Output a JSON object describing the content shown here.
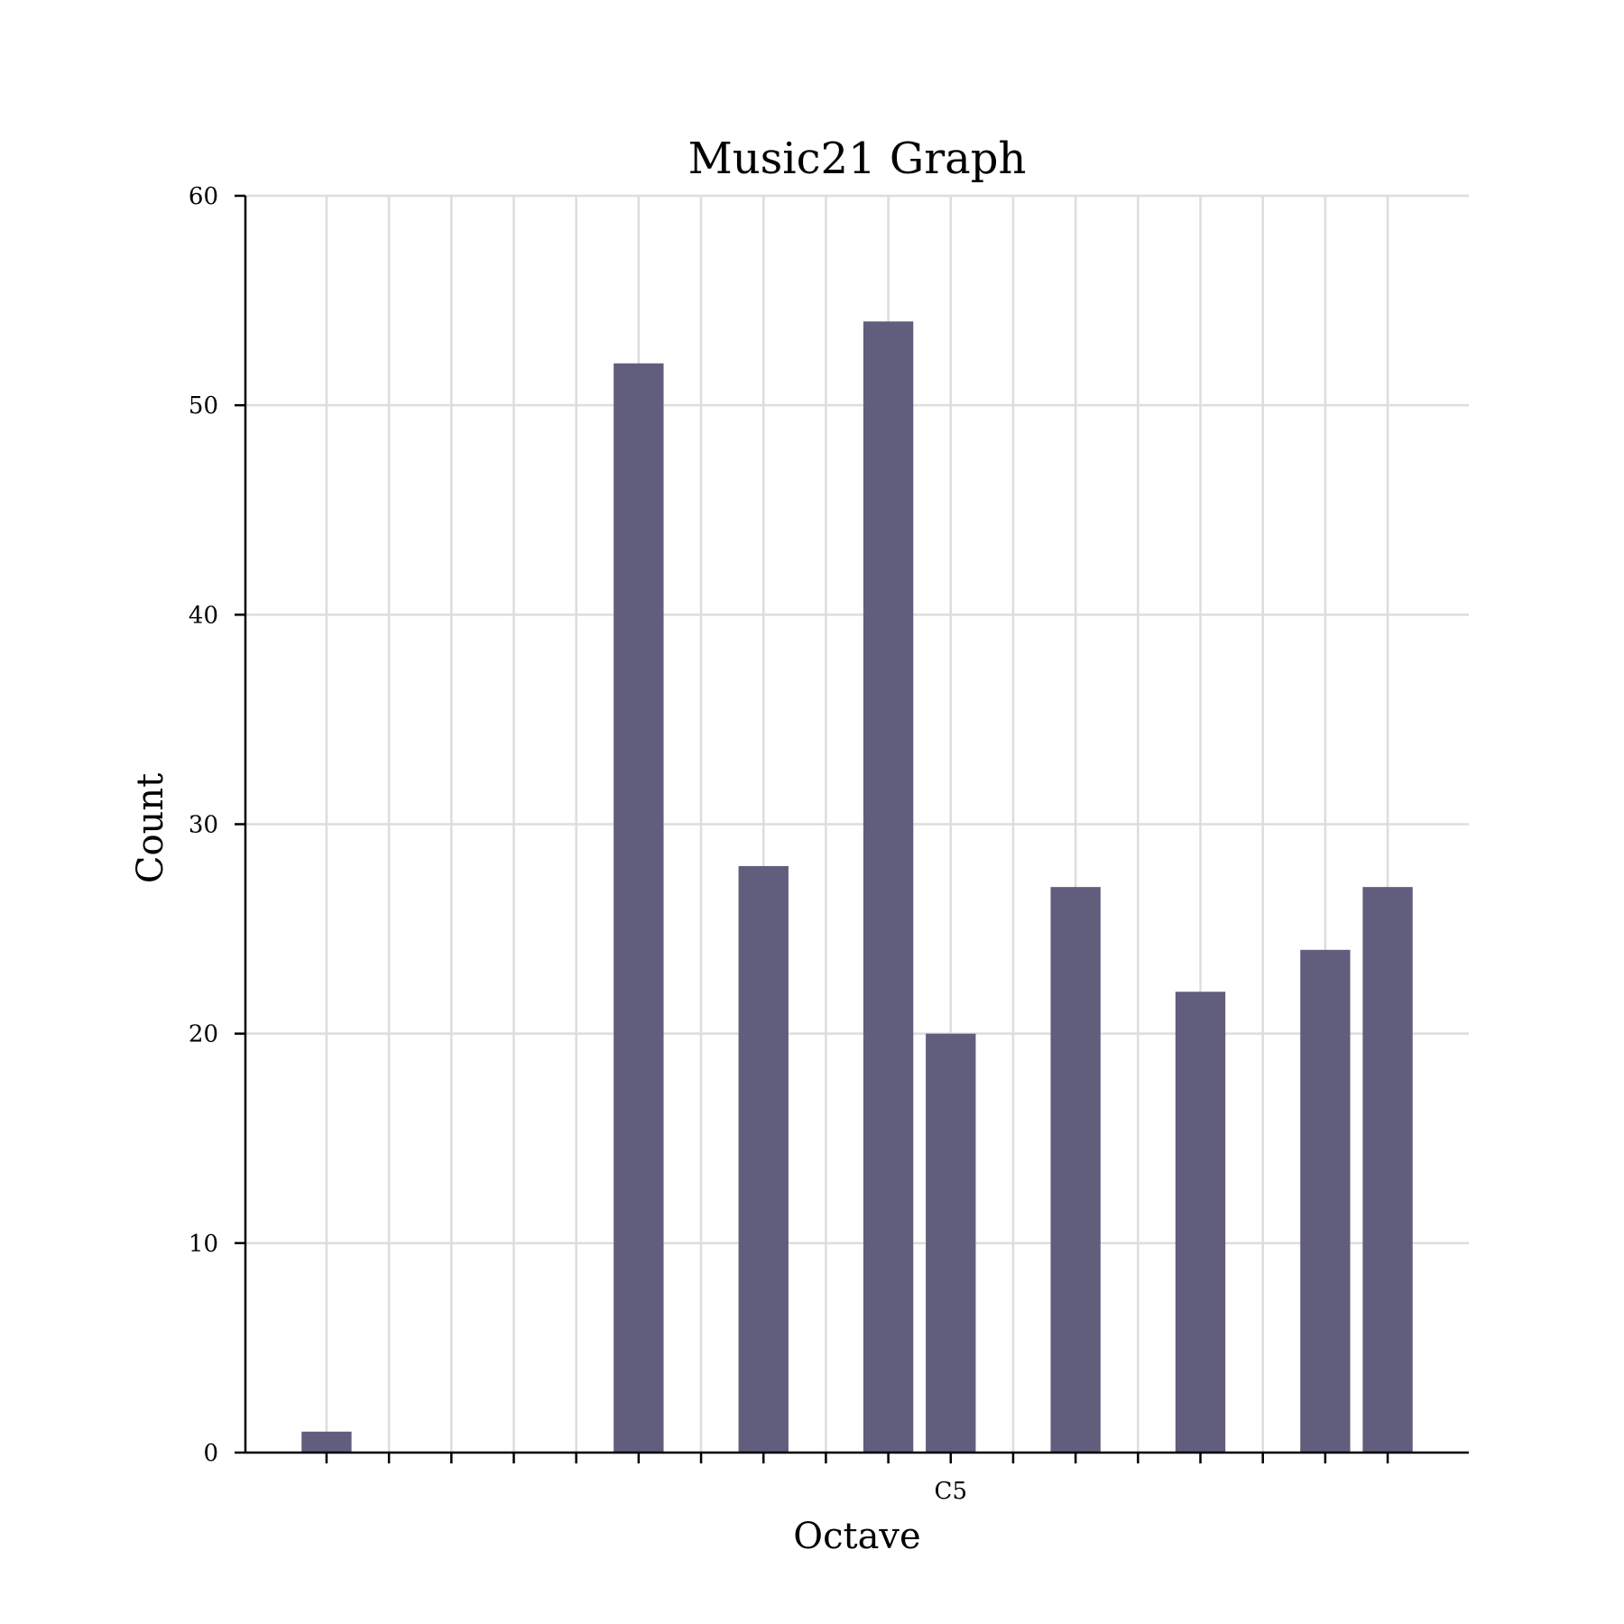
{
  "chart_data": {
    "type": "bar",
    "title": "Music21 Graph",
    "xlabel": "Octave",
    "ylabel": "Count",
    "ylim": [
      0,
      60
    ],
    "yticks": [
      0,
      10,
      20,
      30,
      40,
      50,
      60
    ],
    "x_range": [
      -1.3,
      18.3
    ],
    "x_ticks": [
      0,
      1,
      2,
      3,
      4,
      5,
      6,
      7,
      8,
      9,
      10,
      11,
      12,
      13,
      14,
      15,
      16,
      17
    ],
    "x_tick_labels": [
      {
        "x": 10,
        "label": "C5"
      }
    ],
    "grid": true,
    "bar_color": "#605d7d",
    "bars": [
      {
        "x": 0,
        "value": 1
      },
      {
        "x": 5,
        "value": 52
      },
      {
        "x": 7,
        "value": 28
      },
      {
        "x": 9,
        "value": 54
      },
      {
        "x": 10,
        "value": 20
      },
      {
        "x": 12,
        "value": 27
      },
      {
        "x": 14,
        "value": 22
      },
      {
        "x": 16,
        "value": 24
      },
      {
        "x": 17,
        "value": 27
      }
    ]
  }
}
